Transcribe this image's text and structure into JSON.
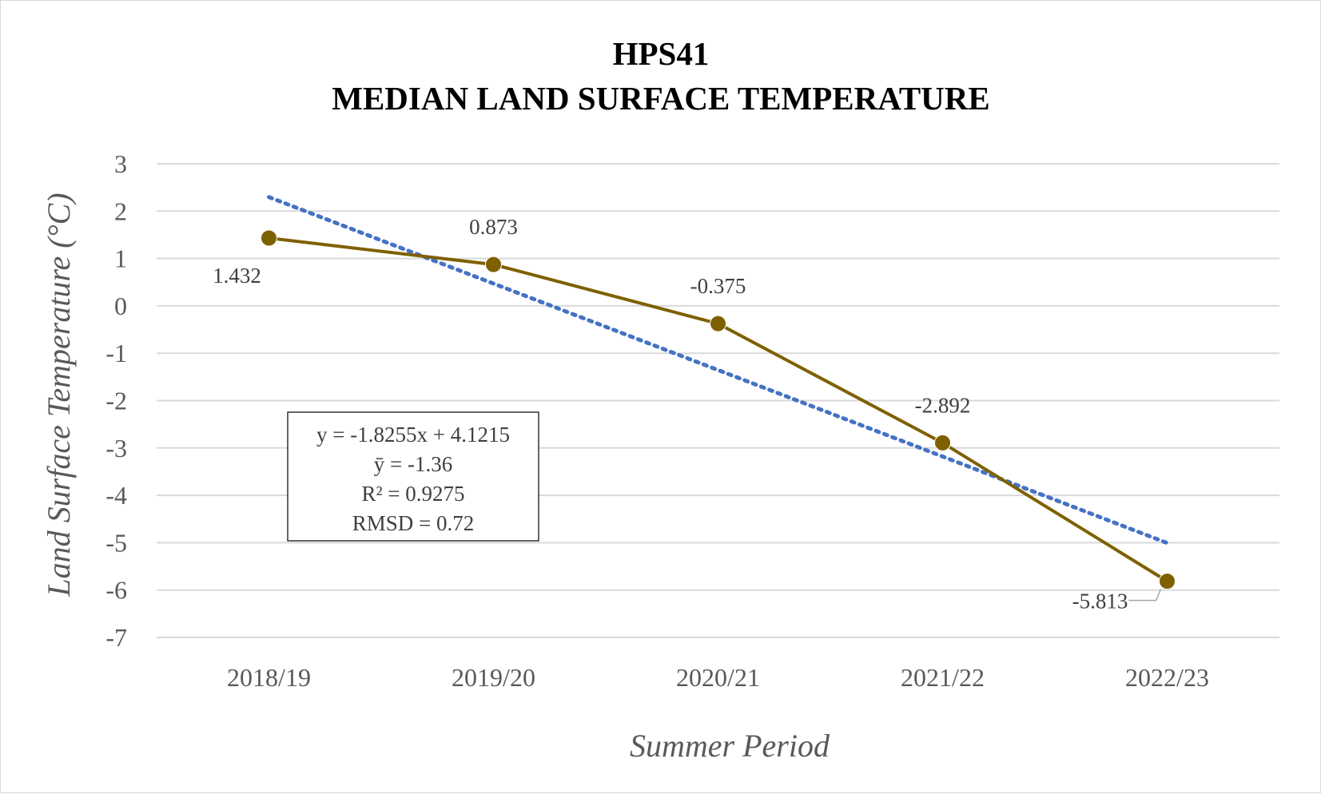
{
  "chart_data": {
    "type": "line",
    "title": [
      "HPS41",
      "MEDIAN LAND SURFACE TEMPERATURE"
    ],
    "xlabel": "Summer Period",
    "ylabel": "Land Surface Temperature (°C)",
    "ylim": [
      -7,
      3
    ],
    "yticks": [
      "3",
      "2",
      "1",
      "0",
      "-1",
      "-2",
      "-3",
      "-4",
      "-5",
      "-6",
      "-7"
    ],
    "grid": true,
    "categories": [
      "2018/19",
      "2019/20",
      "2020/21",
      "2021/22",
      "2022/23"
    ],
    "series": [
      {
        "values": [
          1.432,
          0.873,
          -0.375,
          -2.892,
          -5.813
        ],
        "data_labels": [
          "1.432",
          "0.873",
          "-0.375",
          "-2.892",
          "-5.813"
        ],
        "color": "#7f6000"
      }
    ],
    "trendline": {
      "type": "linear",
      "slope": -1.8255,
      "intercept": 4.1215,
      "color": "#4472c4",
      "style": "dotted"
    },
    "stats_box": [
      "y = -1.8255x + 4.1215",
      "ȳ = -1.36",
      "R² = 0.9275",
      "RMSD = 0.72"
    ]
  }
}
